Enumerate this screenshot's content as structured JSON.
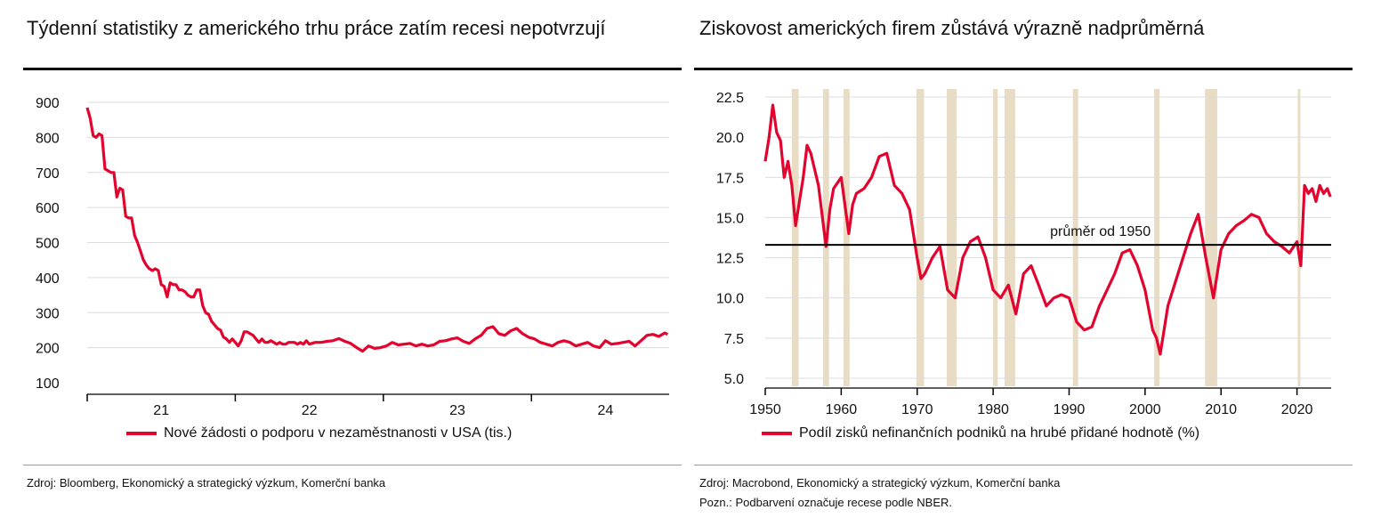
{
  "left_panel": {
    "title": "Týdenní statistiky z amerického trhu práce zatím recesi nepotvrzují",
    "legend": "Nové žádosti o podporu v nezaměstnanosti v USA (tis.)",
    "source": "Zdroj: Bloomberg, Ekonomický a strategický výzkum, Komerční banka"
  },
  "right_panel": {
    "title": "Ziskovost amerických firem zůstává výrazně nadprůměrná",
    "legend": "Podíl zisků nefinančních podniků na hrubé přidané hodnotě (%)",
    "source": "Zdroj: Macrobond, Ekonomický a strategický výzkum, Komerční banka",
    "note": "Pozn.: Podbarvení označuje recese podle NBER.",
    "mean_label": "průměr od 1950"
  },
  "colors": {
    "series": "#e2032e",
    "recession": "#e8dcc4",
    "grid": "#dcdcdc",
    "mean_line": "#000000"
  },
  "chart_data": [
    {
      "type": "line",
      "title": "Týdenní statistiky z amerického trhu práce zatím recesi nepotvrzují",
      "xlabel": "",
      "ylabel": "",
      "ylim": [
        100,
        900
      ],
      "yticks": [
        100,
        200,
        300,
        400,
        500,
        600,
        700,
        800,
        900
      ],
      "xlim": [
        2020.5,
        2024.43
      ],
      "xtick_labels": [
        "21",
        "22",
        "23",
        "24"
      ],
      "xtick_label_positions": [
        2021.0,
        2022.0,
        2023.0,
        2024.0
      ],
      "xtick_marks": [
        2020.5,
        2021.5,
        2022.5,
        2023.5
      ],
      "grid": true,
      "legend_position": "bottom",
      "series": [
        {
          "name": "Nové žádosti o podporu v nezaměstnanosti v USA (tis.)",
          "x": [
            2020.5,
            2020.52,
            2020.54,
            2020.56,
            2020.58,
            2020.6,
            2020.62,
            2020.64,
            2020.66,
            2020.68,
            2020.7,
            2020.72,
            2020.74,
            2020.76,
            2020.78,
            2020.8,
            2020.82,
            2020.84,
            2020.86,
            2020.88,
            2020.9,
            2020.92,
            2020.94,
            2020.96,
            2020.98,
            2021.0,
            2021.02,
            2021.04,
            2021.06,
            2021.08,
            2021.1,
            2021.12,
            2021.14,
            2021.16,
            2021.18,
            2021.2,
            2021.22,
            2021.24,
            2021.26,
            2021.28,
            2021.3,
            2021.32,
            2021.34,
            2021.36,
            2021.38,
            2021.4,
            2021.42,
            2021.44,
            2021.46,
            2021.48,
            2021.5,
            2021.52,
            2021.54,
            2021.56,
            2021.58,
            2021.6,
            2021.62,
            2021.64,
            2021.66,
            2021.68,
            2021.7,
            2021.72,
            2021.74,
            2021.76,
            2021.78,
            2021.8,
            2021.82,
            2021.84,
            2021.86,
            2021.88,
            2021.9,
            2021.92,
            2021.94,
            2021.96,
            2021.98,
            2022.0,
            2022.04,
            2022.08,
            2022.12,
            2022.16,
            2022.2,
            2022.24,
            2022.28,
            2022.32,
            2022.36,
            2022.4,
            2022.44,
            2022.48,
            2022.52,
            2022.56,
            2022.6,
            2022.64,
            2022.68,
            2022.72,
            2022.76,
            2022.8,
            2022.84,
            2022.88,
            2022.92,
            2022.96,
            2023.0,
            2023.04,
            2023.08,
            2023.12,
            2023.16,
            2023.2,
            2023.24,
            2023.28,
            2023.32,
            2023.36,
            2023.4,
            2023.44,
            2023.48,
            2023.52,
            2023.56,
            2023.6,
            2023.64,
            2023.68,
            2023.72,
            2023.76,
            2023.8,
            2023.84,
            2023.88,
            2023.92,
            2023.96,
            2024.0,
            2024.04,
            2024.08,
            2024.12,
            2024.16,
            2024.2,
            2024.24,
            2024.28,
            2024.32,
            2024.36,
            2024.4,
            2024.42
          ],
          "y": [
            885,
            855,
            805,
            800,
            810,
            805,
            710,
            705,
            700,
            700,
            630,
            655,
            650,
            575,
            570,
            570,
            520,
            500,
            475,
            450,
            435,
            425,
            420,
            425,
            420,
            380,
            375,
            345,
            385,
            380,
            380,
            365,
            365,
            360,
            350,
            345,
            345,
            365,
            365,
            320,
            300,
            295,
            275,
            265,
            255,
            250,
            230,
            225,
            215,
            225,
            215,
            205,
            220,
            245,
            245,
            240,
            235,
            225,
            215,
            225,
            215,
            215,
            220,
            215,
            210,
            215,
            210,
            210,
            215,
            215,
            215,
            210,
            215,
            210,
            220,
            210,
            215,
            215,
            218,
            220,
            226,
            218,
            212,
            200,
            190,
            205,
            198,
            200,
            205,
            215,
            208,
            210,
            212,
            205,
            210,
            205,
            208,
            218,
            220,
            225,
            228,
            218,
            212,
            225,
            235,
            255,
            260,
            240,
            235,
            248,
            255,
            240,
            230,
            225,
            215,
            210,
            205,
            215,
            220,
            215,
            205,
            210,
            215,
            205,
            200,
            220,
            210,
            212,
            215,
            218,
            205,
            220,
            235,
            238,
            232,
            242,
            238
          ],
          "color": "#e2032e"
        }
      ]
    },
    {
      "type": "line",
      "title": "Ziskovost amerických firem zůstává výrazně nadprůměrná",
      "xlabel": "",
      "ylabel": "",
      "ylim": [
        4.5,
        23
      ],
      "yticks": [
        5.0,
        7.5,
        10.0,
        12.5,
        15.0,
        17.5,
        20.0,
        22.5
      ],
      "ytick_labels": [
        "5.0",
        "7.5",
        "10.0",
        "12.5",
        "15.0",
        "17.5",
        "20.0",
        "22.5"
      ],
      "xlim": [
        1950,
        2024.5
      ],
      "xticks": [
        1950,
        1960,
        1970,
        1980,
        1990,
        2000,
        2010,
        2020
      ],
      "grid": true,
      "legend_position": "bottom",
      "mean_since_1950": 13.3,
      "recessions": [
        [
          1953.5,
          1954.4
        ],
        [
          1957.6,
          1958.4
        ],
        [
          1960.3,
          1961.1
        ],
        [
          1969.9,
          1970.9
        ],
        [
          1973.9,
          1975.2
        ],
        [
          1980.0,
          1980.6
        ],
        [
          1981.5,
          1982.9
        ],
        [
          1990.5,
          1991.2
        ],
        [
          2001.2,
          2001.9
        ],
        [
          2007.9,
          2009.5
        ],
        [
          2020.1,
          2020.4
        ]
      ],
      "series": [
        {
          "name": "Podíl zisků nefinančních podniků na hrubé přidané hodnotě (%)",
          "x": [
            1950,
            1950.5,
            1951,
            1951.5,
            1952,
            1952.5,
            1953,
            1953.5,
            1954,
            1955,
            1955.5,
            1956,
            1957,
            1958,
            1958.5,
            1959,
            1960,
            1961,
            1961.5,
            1962,
            1963,
            1964,
            1965,
            1966,
            1967,
            1968,
            1969,
            1970,
            1970.5,
            1971,
            1972,
            1973,
            1974,
            1975,
            1976,
            1977,
            1978,
            1979,
            1980,
            1981,
            1982,
            1983,
            1984,
            1985,
            1986,
            1987,
            1988,
            1989,
            1990,
            1991,
            1992,
            1993,
            1994,
            1995,
            1996,
            1997,
            1998,
            1999,
            2000,
            2001,
            2001.5,
            2002,
            2003,
            2004,
            2005,
            2006,
            2007,
            2008,
            2009,
            2010,
            2011,
            2012,
            2013,
            2014,
            2015,
            2016,
            2017,
            2018,
            2019,
            2020,
            2020.5,
            2021,
            2021.5,
            2022,
            2022.5,
            2023,
            2023.5,
            2024,
            2024.4
          ],
          "y": [
            18.5,
            20.0,
            22.0,
            20.3,
            19.8,
            17.5,
            18.5,
            17.0,
            14.5,
            17.5,
            19.5,
            19.0,
            17.0,
            13.2,
            15.5,
            16.8,
            17.5,
            14.0,
            15.8,
            16.5,
            16.8,
            17.5,
            18.8,
            19.0,
            17.0,
            16.5,
            15.5,
            12.5,
            11.2,
            11.5,
            12.5,
            13.2,
            10.5,
            10.0,
            12.5,
            13.5,
            13.8,
            12.5,
            10.5,
            10.0,
            10.8,
            9.0,
            11.5,
            12.0,
            10.8,
            9.5,
            10.0,
            10.2,
            10.0,
            8.5,
            8.0,
            8.2,
            9.5,
            10.5,
            11.5,
            12.8,
            13.0,
            12.0,
            10.5,
            8.0,
            7.5,
            6.5,
            9.5,
            11.0,
            12.5,
            14.0,
            15.2,
            12.5,
            10.0,
            13.0,
            14.0,
            14.5,
            14.8,
            15.2,
            15.0,
            14.0,
            13.5,
            13.2,
            12.8,
            13.5,
            12.0,
            17.0,
            16.5,
            16.8,
            16.0,
            17.0,
            16.5,
            16.8,
            16.3
          ],
          "color": "#e2032e"
        }
      ]
    }
  ]
}
